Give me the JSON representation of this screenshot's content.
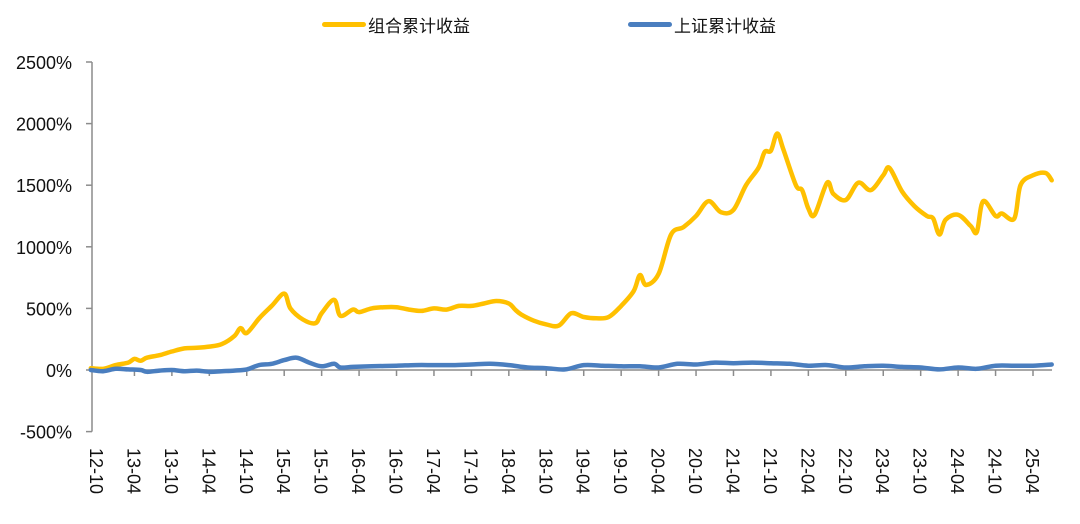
{
  "legend": {
    "series_a": {
      "label": "组合累计收益",
      "color": "#FFC000"
    },
    "series_b": {
      "label": "上证累计收益",
      "color": "#4A7EBF"
    }
  },
  "chart_data": {
    "type": "line",
    "title": "",
    "xlabel": "",
    "ylabel": "",
    "ylim": [
      -500,
      2500
    ],
    "yticks": [
      -500,
      0,
      500,
      1000,
      1500,
      2000,
      2500
    ],
    "ytick_labels": [
      "-500%",
      "0%",
      "500%",
      "1000%",
      "1500%",
      "2000%",
      "2500%"
    ],
    "xtick_labels": [
      "12-10",
      "13-04",
      "13-10",
      "14-04",
      "14-10",
      "15-04",
      "15-10",
      "16-04",
      "16-10",
      "17-04",
      "17-10",
      "18-04",
      "18-10",
      "19-04",
      "19-10",
      "20-04",
      "20-10",
      "21-04",
      "21-10",
      "22-04",
      "22-10",
      "23-04",
      "23-10",
      "24-04",
      "24-10",
      "25-04"
    ],
    "grid": false,
    "legend_position": "top",
    "series": [
      {
        "name": "组合累计收益",
        "color": "#FFC000",
        "points": [
          [
            "12-09",
            15
          ],
          [
            "12-11",
            10
          ],
          [
            "13-01",
            40
          ],
          [
            "13-03",
            60
          ],
          [
            "13-04",
            90
          ],
          [
            "13-05",
            75
          ],
          [
            "13-06",
            100
          ],
          [
            "13-08",
            120
          ],
          [
            "13-10",
            150
          ],
          [
            "13-12",
            175
          ],
          [
            "14-02",
            180
          ],
          [
            "14-04",
            190
          ],
          [
            "14-06",
            210
          ],
          [
            "14-08",
            275
          ],
          [
            "14-09",
            340
          ],
          [
            "14-10",
            300
          ],
          [
            "14-12",
            420
          ],
          [
            "15-02",
            520
          ],
          [
            "15-04",
            620
          ],
          [
            "15-05",
            500
          ],
          [
            "15-07",
            410
          ],
          [
            "15-09",
            380
          ],
          [
            "15-10",
            460
          ],
          [
            "15-12",
            570
          ],
          [
            "16-01",
            440
          ],
          [
            "16-03",
            490
          ],
          [
            "16-04",
            470
          ],
          [
            "16-06",
            500
          ],
          [
            "16-08",
            510
          ],
          [
            "16-10",
            510
          ],
          [
            "16-12",
            490
          ],
          [
            "17-02",
            480
          ],
          [
            "17-04",
            500
          ],
          [
            "17-06",
            490
          ],
          [
            "17-08",
            520
          ],
          [
            "17-10",
            520
          ],
          [
            "17-12",
            540
          ],
          [
            "18-02",
            560
          ],
          [
            "18-04",
            540
          ],
          [
            "18-05",
            490
          ],
          [
            "18-06",
            450
          ],
          [
            "18-08",
            400
          ],
          [
            "18-10",
            370
          ],
          [
            "18-12",
            360
          ],
          [
            "19-02",
            460
          ],
          [
            "19-04",
            430
          ],
          [
            "19-06",
            420
          ],
          [
            "19-08",
            430
          ],
          [
            "19-10",
            520
          ],
          [
            "19-12",
            640
          ],
          [
            "20-01",
            770
          ],
          [
            "20-02",
            690
          ],
          [
            "20-04",
            780
          ],
          [
            "20-06",
            1100
          ],
          [
            "20-08",
            1160
          ],
          [
            "20-10",
            1250
          ],
          [
            "20-12",
            1370
          ],
          [
            "21-02",
            1280
          ],
          [
            "21-04",
            1300
          ],
          [
            "21-06",
            1500
          ],
          [
            "21-08",
            1640
          ],
          [
            "21-09",
            1770
          ],
          [
            "21-10",
            1780
          ],
          [
            "21-11",
            1920
          ],
          [
            "21-12",
            1790
          ],
          [
            "22-02",
            1500
          ],
          [
            "22-03",
            1460
          ],
          [
            "22-04",
            1310
          ],
          [
            "22-05",
            1260
          ],
          [
            "22-07",
            1520
          ],
          [
            "22-08",
            1430
          ],
          [
            "22-10",
            1380
          ],
          [
            "22-12",
            1520
          ],
          [
            "23-02",
            1460
          ],
          [
            "23-04",
            1580
          ],
          [
            "23-05",
            1640
          ],
          [
            "23-07",
            1450
          ],
          [
            "23-09",
            1330
          ],
          [
            "23-11",
            1250
          ],
          [
            "23-12",
            1230
          ],
          [
            "24-01",
            1100
          ],
          [
            "24-02",
            1220
          ],
          [
            "24-04",
            1260
          ],
          [
            "24-06",
            1170
          ],
          [
            "24-07",
            1120
          ],
          [
            "24-08",
            1370
          ],
          [
            "24-10",
            1250
          ],
          [
            "24-11",
            1270
          ],
          [
            "25-01",
            1230
          ],
          [
            "25-02",
            1500
          ],
          [
            "25-04",
            1580
          ],
          [
            "25-06",
            1600
          ],
          [
            "25-07",
            1540
          ]
        ]
      },
      {
        "name": "上证累计收益",
        "color": "#4A7EBF",
        "points": [
          [
            "12-09",
            0
          ],
          [
            "12-11",
            -10
          ],
          [
            "13-01",
            10
          ],
          [
            "13-03",
            5
          ],
          [
            "13-05",
            0
          ],
          [
            "13-06",
            -15
          ],
          [
            "13-08",
            -5
          ],
          [
            "13-10",
            0
          ],
          [
            "13-12",
            -10
          ],
          [
            "14-02",
            -5
          ],
          [
            "14-04",
            -15
          ],
          [
            "14-06",
            -10
          ],
          [
            "14-08",
            -5
          ],
          [
            "14-10",
            5
          ],
          [
            "14-12",
            40
          ],
          [
            "15-02",
            50
          ],
          [
            "15-04",
            80
          ],
          [
            "15-06",
            100
          ],
          [
            "15-08",
            60
          ],
          [
            "15-10",
            30
          ],
          [
            "15-12",
            50
          ],
          [
            "16-01",
            20
          ],
          [
            "16-03",
            25
          ],
          [
            "16-06",
            30
          ],
          [
            "16-10",
            35
          ],
          [
            "17-01",
            40
          ],
          [
            "17-04",
            40
          ],
          [
            "17-07",
            40
          ],
          [
            "17-10",
            45
          ],
          [
            "18-01",
            50
          ],
          [
            "18-04",
            40
          ],
          [
            "18-07",
            20
          ],
          [
            "18-10",
            15
          ],
          [
            "19-01",
            5
          ],
          [
            "19-04",
            40
          ],
          [
            "19-07",
            35
          ],
          [
            "19-10",
            30
          ],
          [
            "20-01",
            30
          ],
          [
            "20-04",
            20
          ],
          [
            "20-07",
            50
          ],
          [
            "20-10",
            45
          ],
          [
            "21-01",
            60
          ],
          [
            "21-04",
            55
          ],
          [
            "21-07",
            60
          ],
          [
            "21-10",
            55
          ],
          [
            "22-01",
            50
          ],
          [
            "22-04",
            35
          ],
          [
            "22-07",
            40
          ],
          [
            "22-10",
            20
          ],
          [
            "23-01",
            30
          ],
          [
            "23-04",
            35
          ],
          [
            "23-07",
            25
          ],
          [
            "23-10",
            20
          ],
          [
            "24-01",
            5
          ],
          [
            "24-04",
            20
          ],
          [
            "24-07",
            10
          ],
          [
            "24-10",
            35
          ],
          [
            "25-01",
            35
          ],
          [
            "25-04",
            35
          ],
          [
            "25-07",
            45
          ]
        ]
      }
    ]
  }
}
